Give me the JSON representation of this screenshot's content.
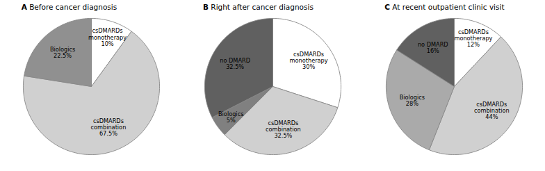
{
  "chart_data": [
    {
      "type": "pie",
      "title": "A Before cancer diagnosis",
      "categories": [
        "csDMARDs\nmonotherapy",
        "csDMARDs\ncombination",
        "Biologics"
      ],
      "values": [
        10,
        67.5,
        22.5
      ],
      "value_labels": [
        "10%",
        "67.5%",
        "22.5%"
      ],
      "colors": [
        "#ffffff",
        "#d0d0d0",
        "#909090"
      ],
      "data_labels": true
    },
    {
      "type": "pie",
      "title": "B Right after cancer diagnosis",
      "categories": [
        "csDMARDs\nmonotherapy",
        "csDMARDs\ncombination",
        "Biologics",
        "no DMARD"
      ],
      "values": [
        30,
        32.5,
        5,
        32.5
      ],
      "value_labels": [
        "30%",
        "32.5%",
        "5%",
        "32.5%"
      ],
      "colors": [
        "#ffffff",
        "#d0d0d0",
        "#808080",
        "#606060"
      ],
      "data_labels": true
    },
    {
      "type": "pie",
      "title": "C At recent outpatient clinic visit",
      "categories": [
        "csDMARDs\nmonotherapy",
        "csDMARDs\ncombination",
        "Biologics",
        "no DMARD"
      ],
      "values": [
        12,
        44,
        28,
        16
      ],
      "value_labels": [
        "12%",
        "44%",
        "28%",
        "16%"
      ],
      "colors": [
        "#ffffff",
        "#d0d0d0",
        "#aaaaaa",
        "#606060"
      ],
      "data_labels": true
    }
  ]
}
